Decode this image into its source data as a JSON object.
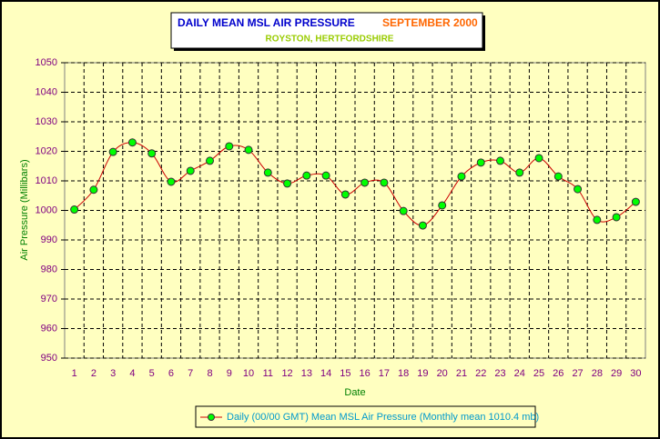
{
  "chart_data": {
    "type": "line",
    "title": "DAILY MEAN MSL AIR PRESSURE",
    "title_date": "SEPTEMBER 2000",
    "subtitle": "ROYSTON, HERTFORDSHIRE",
    "xlabel": "Date",
    "ylabel": "Air Pressure (Millibars)",
    "categories": [
      "1",
      "2",
      "3",
      "4",
      "5",
      "6",
      "7",
      "8",
      "9",
      "10",
      "11",
      "12",
      "13",
      "14",
      "15",
      "16",
      "17",
      "18",
      "19",
      "20",
      "21",
      "22",
      "23",
      "24",
      "25",
      "26",
      "27",
      "28",
      "29",
      "30"
    ],
    "series": [
      {
        "name": "Daily (00/00 GMT) Mean MSL Air Pressure (Monthly mean 1010.4 mb)",
        "color": "#cc0000",
        "marker_color": "#00ff00",
        "values": [
          1000.3,
          1007,
          1019.8,
          1023,
          1019.3,
          1009.7,
          1013.4,
          1016.8,
          1021.7,
          1020.5,
          1012.8,
          1009.1,
          1011.8,
          1011.8,
          1005.4,
          1009.4,
          1009.4,
          999.8,
          994.9,
          1001.7,
          1011.5,
          1016.2,
          1016.8,
          1012.8,
          1017.7,
          1011.5,
          1007.2,
          996.8,
          997.7,
          1002.9
        ]
      }
    ],
    "ylim": [
      950,
      1050
    ],
    "yticks": [
      950,
      960,
      970,
      980,
      990,
      1000,
      1010,
      1020,
      1030,
      1040,
      1050
    ],
    "grid": true,
    "smooth": true,
    "legend": "bottom"
  }
}
